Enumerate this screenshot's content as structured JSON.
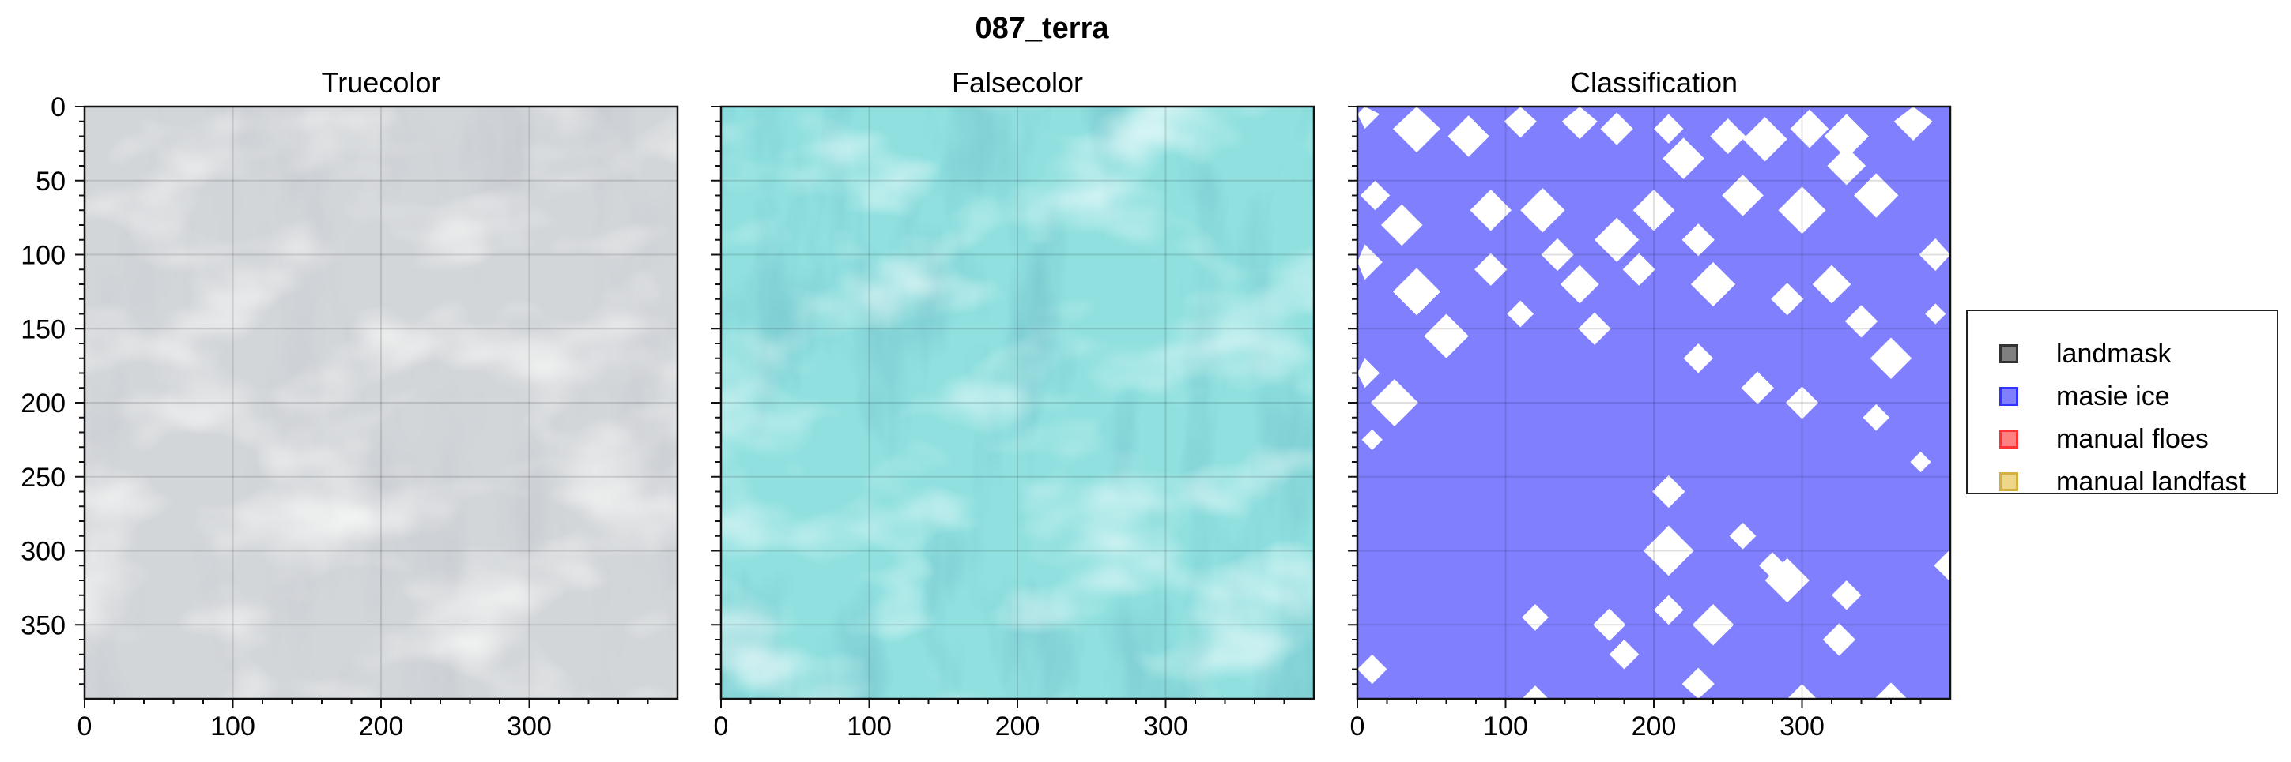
{
  "figure_title": "087_terra",
  "chart_data": [
    {
      "type": "image",
      "title": "Truecolor",
      "xlim": [
        0,
        400
      ],
      "ylim": [
        400,
        0
      ],
      "xticks": [
        0,
        100,
        200,
        300
      ],
      "yticks": [
        0,
        50,
        100,
        150,
        200,
        250,
        300,
        350
      ],
      "grid": true,
      "colors": {
        "base": "#d3d6d9",
        "dark": "#b3b8bf",
        "light": "#f2f3f2"
      }
    },
    {
      "type": "image",
      "title": "Falsecolor",
      "xlim": [
        0,
        400
      ],
      "ylim": [
        400,
        0
      ],
      "xticks": [
        0,
        100,
        200,
        300
      ],
      "yticks": [
        0,
        50,
        100,
        150,
        200,
        250,
        300,
        350
      ],
      "grid": true,
      "colors": {
        "base": "#8fe0df",
        "dark": "#4fb3b8",
        "light": "#e4f8f7"
      }
    },
    {
      "type": "heatmap",
      "title": "Classification",
      "xlim": [
        0,
        400
      ],
      "ylim": [
        400,
        0
      ],
      "xticks": [
        0,
        100,
        200,
        300
      ],
      "yticks": [
        0,
        50,
        100,
        150,
        200,
        250,
        300,
        350
      ],
      "grid": true,
      "classes": [
        "landmask",
        "masie ice",
        "manual floes",
        "manual landfast"
      ],
      "background_class": "masie ice",
      "unclassified_squares_xy": [
        [
          5,
          5,
          20
        ],
        [
          40,
          15,
          32
        ],
        [
          75,
          20,
          28
        ],
        [
          110,
          10,
          22
        ],
        [
          150,
          10,
          24
        ],
        [
          175,
          15,
          22
        ],
        [
          210,
          15,
          20
        ],
        [
          220,
          35,
          28
        ],
        [
          250,
          20,
          24
        ],
        [
          275,
          22,
          30
        ],
        [
          305,
          15,
          26
        ],
        [
          330,
          20,
          30
        ],
        [
          375,
          10,
          26
        ],
        [
          12,
          60,
          20
        ],
        [
          30,
          80,
          28
        ],
        [
          5,
          105,
          24
        ],
        [
          40,
          125,
          32
        ],
        [
          60,
          155,
          30
        ],
        [
          5,
          180,
          20
        ],
        [
          25,
          200,
          32
        ],
        [
          10,
          225,
          14
        ],
        [
          90,
          70,
          28
        ],
        [
          90,
          110,
          22
        ],
        [
          110,
          140,
          18
        ],
        [
          125,
          70,
          30
        ],
        [
          135,
          100,
          22
        ],
        [
          150,
          120,
          26
        ],
        [
          160,
          150,
          22
        ],
        [
          175,
          90,
          30
        ],
        [
          190,
          110,
          22
        ],
        [
          200,
          70,
          28
        ],
        [
          230,
          90,
          22
        ],
        [
          240,
          120,
          30
        ],
        [
          260,
          60,
          28
        ],
        [
          300,
          70,
          32
        ],
        [
          330,
          40,
          26
        ],
        [
          350,
          60,
          30
        ],
        [
          290,
          130,
          22
        ],
        [
          320,
          120,
          26
        ],
        [
          340,
          145,
          22
        ],
        [
          360,
          170,
          28
        ],
        [
          390,
          100,
          22
        ],
        [
          390,
          140,
          14
        ],
        [
          230,
          170,
          20
        ],
        [
          270,
          190,
          22
        ],
        [
          300,
          200,
          22
        ],
        [
          350,
          210,
          18
        ],
        [
          210,
          260,
          22
        ],
        [
          380,
          240,
          14
        ],
        [
          210,
          300,
          34
        ],
        [
          260,
          290,
          18
        ],
        [
          290,
          320,
          30
        ],
        [
          240,
          350,
          28
        ],
        [
          280,
          310,
          18
        ],
        [
          330,
          330,
          20
        ],
        [
          325,
          360,
          22
        ],
        [
          400,
          310,
          22
        ],
        [
          10,
          380,
          20
        ],
        [
          120,
          400,
          18
        ],
        [
          180,
          370,
          20
        ],
        [
          230,
          390,
          22
        ],
        [
          300,
          400,
          20
        ],
        [
          360,
          400,
          22
        ],
        [
          120,
          345,
          18
        ],
        [
          170,
          350,
          22
        ],
        [
          210,
          340,
          20
        ]
      ],
      "colors": {
        "masie ice": "#8080ff",
        "unclassified": "#ffffff"
      }
    }
  ],
  "legend": {
    "placement": "right",
    "items": [
      {
        "label": "landmask",
        "fill": "#808080",
        "edge": "#333333"
      },
      {
        "label": "masie ice",
        "fill": "#8080ff",
        "edge": "#3333ff"
      },
      {
        "label": "manual floes",
        "fill": "#ff8080",
        "edge": "#ff3333"
      },
      {
        "label": "manual landfast",
        "fill": "#eed68a",
        "edge": "#d4b040"
      }
    ]
  }
}
